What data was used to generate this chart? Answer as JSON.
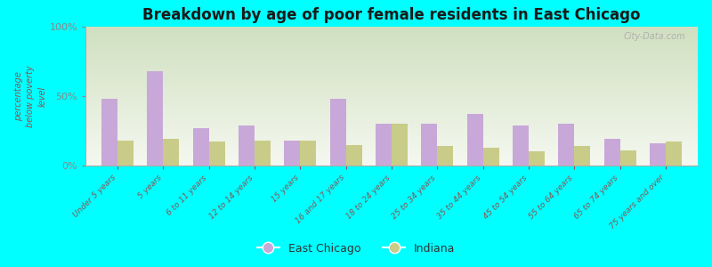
{
  "title": "Breakdown by age of poor female residents in East Chicago",
  "ylabel": "percentage\nbelow poverty\nlevel",
  "categories": [
    "Under 5 years",
    "5 years",
    "6 to 11 years",
    "12 to 14 years",
    "15 years",
    "16 and 17 years",
    "18 to 24 years",
    "25 to 34 years",
    "35 to 44 years",
    "45 to 54 years",
    "55 to 64 years",
    "65 to 74 years",
    "75 years and over"
  ],
  "east_chicago": [
    48,
    68,
    27,
    29,
    18,
    48,
    30,
    30,
    37,
    29,
    30,
    19,
    16
  ],
  "indiana": [
    18,
    19,
    17,
    18,
    18,
    15,
    30,
    14,
    13,
    10,
    14,
    11,
    17
  ],
  "ec_color": "#c8a8d8",
  "in_color": "#c8cc88",
  "bg_top": "#d0e0c0",
  "bg_bottom": "#f5f8f0",
  "fig_bg": "#00ffff",
  "ylim": [
    0,
    100
  ],
  "ytick_labels": [
    "0%",
    "50%",
    "100%"
  ],
  "title_color": "#1a1a1a",
  "watermark": "City-Data.com",
  "legend_ec": "East Chicago",
  "legend_in": "Indiana",
  "xlabel_color": "#885555",
  "ylabel_color": "#885555",
  "ytick_color": "#666666"
}
